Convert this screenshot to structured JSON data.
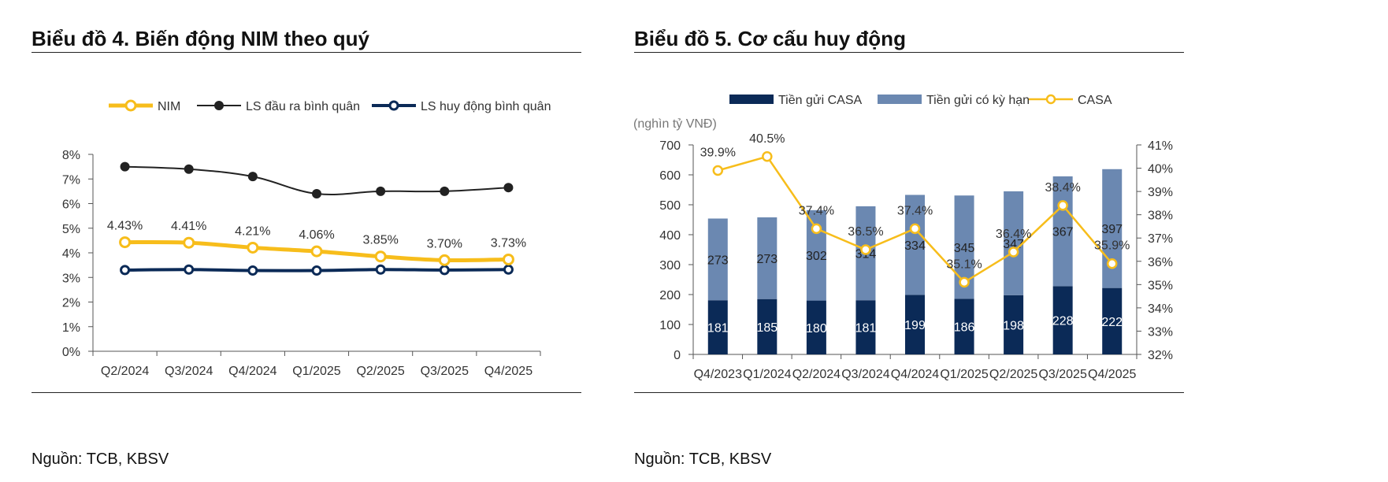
{
  "left_panel": {
    "title": "Biểu đồ 4. Biến động NIM theo quý",
    "source": "Nguồn: TCB, KBSV"
  },
  "right_panel": {
    "title": "Biểu đồ 5. Cơ cấu huy động",
    "source": "Nguồn: TCB, KBSV"
  },
  "colors": {
    "nim": "#f7bd1b",
    "ls_dau_ra": "#222222",
    "ls_huy_dong": "#0b2a57",
    "casa_bar": "#0b2a57",
    "term_bar": "#6b88b1",
    "casa_line": "#f7bd1b"
  },
  "chart_data": [
    {
      "type": "line",
      "title": "Biểu đồ 4. Biến động NIM theo quý",
      "categories": [
        "Q2/2024",
        "Q3/2024",
        "Q4/2024",
        "Q1/2025",
        "Q2/2025",
        "Q3/2025",
        "Q4/2025"
      ],
      "series": [
        {
          "name": "NIM",
          "values": [
            4.43,
            4.41,
            4.21,
            4.06,
            3.85,
            3.7,
            3.73
          ],
          "labels": [
            "4.43%",
            "4.41%",
            "4.21%",
            "4.06%",
            "3.85%",
            "3.70%",
            "3.73%"
          ]
        },
        {
          "name": "LS đầu ra bình quân",
          "values": [
            7.5,
            7.4,
            7.1,
            6.4,
            6.5,
            6.5,
            6.65
          ]
        },
        {
          "name": "LS huy động bình quân",
          "values": [
            3.3,
            3.32,
            3.28,
            3.28,
            3.32,
            3.3,
            3.32
          ]
        }
      ],
      "yticks": [
        "0%",
        "1%",
        "2%",
        "3%",
        "4%",
        "5%",
        "6%",
        "7%",
        "8%"
      ],
      "ylim": [
        0,
        8
      ],
      "legend_position": "top"
    },
    {
      "type": "bar",
      "title": "Biểu đồ 5. Cơ cấu huy động",
      "unit_label": "(nghìn tỷ VNĐ)",
      "categories": [
        "Q4/2023",
        "Q1/2024",
        "Q2/2024",
        "Q3/2024",
        "Q4/2024",
        "Q1/2025",
        "Q2/2025",
        "Q3/2025",
        "Q4/2025"
      ],
      "series": [
        {
          "name": "Tiền gửi CASA",
          "values": [
            181,
            185,
            180,
            181,
            199,
            186,
            198,
            228,
            222
          ],
          "labels": [
            "181",
            "185",
            "180",
            "181",
            "199",
            "186",
            "198",
            "228",
            "222"
          ]
        },
        {
          "name": "Tiền gửi có kỳ hạn",
          "values": [
            273,
            273,
            302,
            314,
            334,
            345,
            347,
            367,
            397
          ],
          "labels": [
            "273",
            "273",
            "302",
            "314",
            "334",
            "345",
            "347",
            "367",
            "397"
          ]
        }
      ],
      "line_series": {
        "name": "CASA",
        "values": [
          39.9,
          40.5,
          37.4,
          36.5,
          37.4,
          35.1,
          36.4,
          38.4,
          35.9
        ],
        "labels": [
          "39.9%",
          "40.5%",
          "37.4%",
          "36.5%",
          "37.4%",
          "35.1%",
          "36.4%",
          "38.4%",
          "35.9%"
        ]
      },
      "yticks_left": [
        "0",
        "100",
        "200",
        "300",
        "400",
        "500",
        "600",
        "700"
      ],
      "ylim_left": [
        0,
        700
      ],
      "yticks_right": [
        "32%",
        "33%",
        "34%",
        "35%",
        "36%",
        "37%",
        "38%",
        "39%",
        "40%",
        "41%"
      ],
      "ylim_right": [
        32,
        41
      ],
      "legend_position": "top"
    }
  ]
}
